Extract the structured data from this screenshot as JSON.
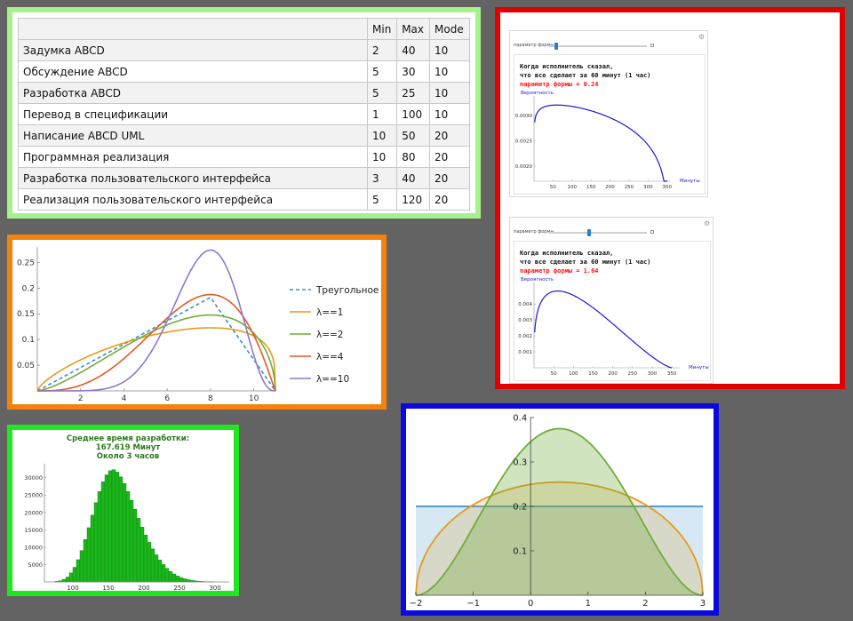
{
  "table": {
    "headers": [
      "",
      "Min",
      "Max",
      "Mode"
    ],
    "rows": [
      [
        "Задумка ABCD",
        "2",
        "40",
        "10"
      ],
      [
        "Обсуждение ABCD",
        "5",
        "30",
        "10"
      ],
      [
        "Разработка ABCD",
        "5",
        "25",
        "10"
      ],
      [
        "Перевод в спецификации",
        "1",
        "100",
        "10"
      ],
      [
        "Написание ABCD UML",
        "10",
        "50",
        "20"
      ],
      [
        "Программная реализация",
        "10",
        "80",
        "20"
      ],
      [
        "Разработка пользовательского интерфейса",
        "3",
        "40",
        "20"
      ],
      [
        "Реализация пользовательского интерфейса",
        "5",
        "120",
        "20"
      ]
    ]
  },
  "manipulates": [
    {
      "slider_label": "параметр формы",
      "slider_value": 0.24,
      "line1": "Когда исполнитель сказал,",
      "line2": "что все сделает за 60 минут (1 час)",
      "param_text": "параметр формы = 0.24",
      "ylabel": "Вероятность",
      "xlabel": "Минуты"
    },
    {
      "slider_label": "параметр формы",
      "slider_value": 1.64,
      "line1": "Когда исполнитель сказал,",
      "line2": "что все сделает за 60 минут (1 час)",
      "param_text": "параметр формы = 1.64",
      "ylabel": "Вероятность",
      "xlabel": "Минуты"
    }
  ],
  "colors": {
    "blue": "#3c8fc4",
    "orange": "#e69a1d",
    "green": "#70ac3c",
    "red": "#e05a28",
    "purple": "#8f77c8",
    "hist_green": "#1ab81a",
    "curve_blue": "#1a1ad6",
    "frame_table": "#a6f28a",
    "frame_dist": "#f5830b",
    "frame_hist": "#1fe81f",
    "frame_manip": "#e00000",
    "frame_beta": "#0a0ae0"
  },
  "chart_data": [
    {
      "id": "dist",
      "type": "line",
      "xlim": [
        0,
        11
      ],
      "ylim": [
        0,
        0.28
      ],
      "xticks": [
        2,
        4,
        6,
        8,
        10
      ],
      "yticks": [
        0.05,
        0.1,
        0.15,
        0.2,
        0.25
      ],
      "min": 0,
      "mode": 8,
      "max": 11,
      "legend_position": "right",
      "series": [
        {
          "name": "Треугольное",
          "kind": "triangular",
          "color": "#3c8fc4",
          "dashed": true
        },
        {
          "name": "λ==1",
          "kind": "pert",
          "lambda": 1,
          "color": "#e69a1d"
        },
        {
          "name": "λ==2",
          "kind": "pert",
          "lambda": 2,
          "color": "#70ac3c"
        },
        {
          "name": "λ==4",
          "kind": "pert",
          "lambda": 4,
          "color": "#e05a28"
        },
        {
          "name": "λ==10",
          "kind": "pert",
          "lambda": 10,
          "color": "#8f77c8"
        }
      ]
    },
    {
      "id": "hist",
      "type": "bar",
      "title_lines": [
        "Среднее время разработки:",
        "167.619 Минут",
        "Около 3 часов"
      ],
      "xticks": [
        100,
        150,
        200,
        250,
        300
      ],
      "yticks": [
        5000,
        10000,
        15000,
        20000,
        25000,
        30000
      ],
      "xlim": [
        60,
        320
      ],
      "ylim": [
        0,
        34000
      ],
      "bin_width": 5,
      "bins_start": 75,
      "values": [
        150,
        350,
        750,
        1400,
        2600,
        4200,
        6400,
        9000,
        12200,
        15600,
        19200,
        22800,
        26000,
        28800,
        30800,
        32000,
        32300,
        31600,
        30200,
        28300,
        26000,
        23500,
        20900,
        18300,
        15800,
        13500,
        11400,
        9500,
        7800,
        6300,
        5000,
        3900,
        3000,
        2300,
        1700,
        1250,
        900,
        650,
        450,
        300,
        200,
        130,
        80,
        50,
        30
      ]
    },
    {
      "id": "manip1",
      "type": "line",
      "xlim": [
        0,
        360
      ],
      "ylim": [
        0.0017,
        0.00325
      ],
      "xticks": [
        50,
        100,
        150,
        200,
        250,
        300,
        350
      ],
      "yticks": [
        0.002,
        0.0025,
        0.003
      ],
      "ytick_labels": [
        "0.0020",
        "0.0025",
        "0.0030"
      ],
      "min": 0,
      "mode": 60,
      "max": 350,
      "lambda": 0.24
    },
    {
      "id": "manip2",
      "type": "line",
      "xlim": [
        0,
        370
      ],
      "ylim": [
        0,
        0.0049
      ],
      "xticks": [
        50,
        100,
        150,
        200,
        250,
        300,
        350
      ],
      "yticks": [
        0.001,
        0.002,
        0.003,
        0.004
      ],
      "ytick_labels": [
        "0.001",
        "0.002",
        "0.003",
        "0.004"
      ],
      "min": 0,
      "mode": 60,
      "max": 350,
      "lambda": 1.64
    },
    {
      "id": "beta",
      "type": "area",
      "xlim": [
        -2,
        3
      ],
      "ylim": [
        0,
        0.4
      ],
      "xticks": [
        -2,
        -1,
        0,
        1,
        2,
        3
      ],
      "xtick_labels": [
        "−2",
        "−1",
        "0",
        "1",
        "2",
        "3"
      ],
      "yticks": [
        0.1,
        0.2,
        0.3,
        0.4
      ],
      "series": [
        {
          "kind": "uniform",
          "a": -2,
          "b": 3,
          "color": "#3c8fc4",
          "fill": "#d5e8f3"
        },
        {
          "kind": "beta",
          "a": -2,
          "b": 3,
          "alpha": 1.5,
          "beta": 1.5,
          "color": "#e69a1d"
        },
        {
          "kind": "beta",
          "a": -2,
          "b": 3,
          "alpha": 3,
          "beta": 3,
          "color": "#70ac3c"
        }
      ]
    }
  ]
}
